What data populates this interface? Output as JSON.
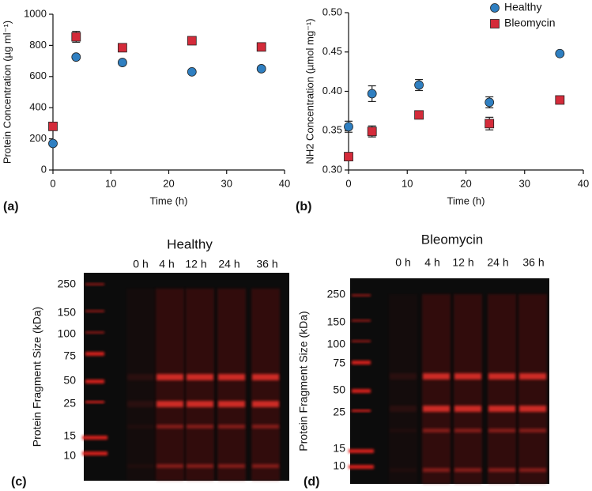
{
  "chart_data": [
    {
      "type": "scatter",
      "panel_label": "(a)",
      "x_label": "Time (h)",
      "y_label": "Protein Concentration (µg ml⁻¹)",
      "xlim": [
        0,
        40
      ],
      "xticks": [
        0,
        10,
        20,
        30,
        40
      ],
      "ylim": [
        0,
        1000
      ],
      "yticks": [
        0,
        200,
        400,
        600,
        800,
        1000
      ],
      "series": [
        {
          "color": "#2f7fc1",
          "marker": "circle",
          "x": [
            0,
            4,
            12,
            24,
            36
          ],
          "values": [
            170,
            725,
            690,
            630,
            650
          ],
          "errors": [
            10,
            10,
            10,
            8,
            10
          ]
        },
        {
          "color": "#d42b3a",
          "marker": "square",
          "x": [
            0,
            4,
            12,
            24,
            36
          ],
          "values": [
            280,
            855,
            785,
            830,
            790
          ],
          "errors": [
            10,
            35,
            12,
            12,
            25
          ]
        }
      ]
    },
    {
      "type": "scatter",
      "panel_label": "(b)",
      "x_label": "Time (h)",
      "y_label": "NH2 Concentration (µmol mg⁻¹)",
      "xlim": [
        0,
        40
      ],
      "xticks": [
        0,
        10,
        20,
        30,
        40
      ],
      "ylim": [
        0.3,
        0.5
      ],
      "yticks": [
        {
          "value": 0.3,
          "label": "0.30"
        },
        0.35,
        {
          "value": 0.4,
          "label": "0.40"
        },
        0.45,
        {
          "value": 0.5,
          "label": "0.50"
        }
      ],
      "legend": "upper right",
      "series": [
        {
          "name": "Healthy",
          "color": "#2f7fc1",
          "marker": "circle",
          "x": [
            0,
            4,
            12,
            24,
            36
          ],
          "values": [
            0.355,
            0.397,
            0.408,
            0.386,
            0.448
          ],
          "errors": [
            0.007,
            0.01,
            0.007,
            0.007,
            0.002
          ]
        },
        {
          "name": "Bleomycin",
          "color": "#d42b3a",
          "marker": "square",
          "x": [
            0,
            4,
            12,
            24,
            36
          ],
          "values": [
            0.317,
            0.349,
            0.37,
            0.359,
            0.389
          ],
          "errors": [
            0.002,
            0.007,
            0.002,
            0.008,
            0.002
          ]
        }
      ]
    }
  ],
  "gels": [
    {
      "panel_label": "(c)",
      "title": "Healthy",
      "y_label": "Protein Fragment Size (kDa)",
      "lanes": [
        "0 h",
        "4 h",
        "12 h",
        "24 h",
        "36 h"
      ],
      "markers": [
        250,
        150,
        100,
        75,
        50,
        25,
        15,
        10
      ]
    },
    {
      "panel_label": "(d)",
      "title": "Bleomycin",
      "y_label": "Protein Fragment Size (kDa)",
      "lanes": [
        "0 h",
        "4 h",
        "12 h",
        "24 h",
        "36 h"
      ],
      "markers": [
        250,
        150,
        100,
        75,
        50,
        25,
        15,
        10
      ]
    }
  ]
}
